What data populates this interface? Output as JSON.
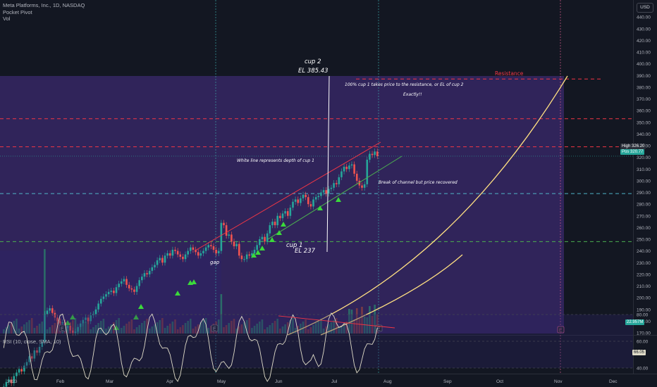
{
  "legend": {
    "symbol": "Meta Platforms, Inc., 1D, NASDAQ",
    "indicator1": "Pocket Pivot",
    "indicator2": "Vol"
  },
  "rsi_legend": "RSI (10, close, SMA, 10)",
  "currency": "USD",
  "price_tags": {
    "high_label": "High",
    "high_value": "326.20",
    "pos_label": "Pos",
    "pos_value": "320.77",
    "rsi_value": "66.05",
    "vol_value": "22.957M"
  },
  "colors": {
    "background": "#131722",
    "up": "#26a69a",
    "down": "#ef5350",
    "zone": "#3b2a6e",
    "resistance": "#f23645",
    "support_cyan": "#4fb3c8",
    "support_green": "#4caf50",
    "arc": "#ffe082",
    "channel_top": "#f23645",
    "channel_bottom": "#4caf50",
    "pivot": "#3bd93b",
    "rsi": "#e0dcc8"
  },
  "annotations": {
    "cup2_title": "cup 2",
    "cup2_el": "EL 385.43",
    "cup1_title": "cup 1",
    "cup1_el": "EL  237",
    "note_resistance": "100% cup 1 takes price to the resistance, or EL of cup 2",
    "note_exactly": "Exactly!!",
    "note_whiteline": "White line represents depth of cup 1",
    "note_break": "Break of channel but price recovered",
    "gap": "gap",
    "resistance": "Resistance",
    "earnings": "E"
  },
  "chart_data": {
    "type": "candlestick",
    "y_axis_ticks": [
      170,
      180,
      190,
      200,
      210,
      220,
      230,
      240,
      250,
      260,
      270,
      280,
      290,
      300,
      310,
      320,
      330,
      340,
      350,
      360,
      370,
      380,
      390,
      400,
      410,
      420,
      430,
      440
    ],
    "rsi_ticks": [
      40.0,
      60.0,
      80.0
    ],
    "x_labels": [
      "2023",
      "Feb",
      "Mar",
      "Apr",
      "May",
      "Jun",
      "Jul",
      "Aug",
      "Sep",
      "Oct",
      "Nov",
      "Dec"
    ],
    "horizontal_levels": [
      {
        "price": 387,
        "style": "resistance"
      },
      {
        "price": 353,
        "style": "resistance"
      },
      {
        "price": 329,
        "style": "resistance"
      },
      {
        "price": 289,
        "style": "support_cyan"
      },
      {
        "price": 248,
        "style": "support_green"
      }
    ],
    "candles_note": "synthetic OHLC path approximating META Jan-Aug 2023",
    "closes": [
      124,
      128,
      130,
      127,
      133,
      136,
      139,
      137,
      142,
      145,
      150,
      148,
      155,
      153,
      158,
      162,
      186,
      189,
      191,
      187,
      183,
      180,
      178,
      179,
      174,
      176,
      172,
      170,
      171,
      175,
      178,
      181,
      183,
      180,
      185,
      186,
      190,
      195,
      199,
      201,
      203,
      205,
      206,
      204,
      209,
      212,
      214,
      216,
      211,
      208,
      207,
      205,
      210,
      215,
      218,
      221,
      220,
      223,
      226,
      228,
      232,
      234,
      230,
      236,
      238,
      236,
      241,
      240,
      237,
      235,
      233,
      237,
      240,
      243,
      241,
      239,
      236,
      238,
      240,
      243,
      245,
      244,
      241,
      238,
      240,
      264,
      262,
      253,
      254,
      248,
      244,
      246,
      236,
      233,
      233,
      237,
      236,
      238,
      241,
      245,
      250,
      252,
      248,
      255,
      262,
      265,
      262,
      270,
      268,
      272,
      274,
      270,
      277,
      282,
      284,
      281,
      285,
      288,
      286,
      280,
      278,
      284,
      286,
      287,
      290,
      292,
      289,
      293,
      294,
      298,
      297,
      303,
      308,
      312,
      310,
      313,
      314,
      306,
      300,
      296,
      294,
      297,
      318,
      323,
      322,
      325,
      321
    ]
  }
}
